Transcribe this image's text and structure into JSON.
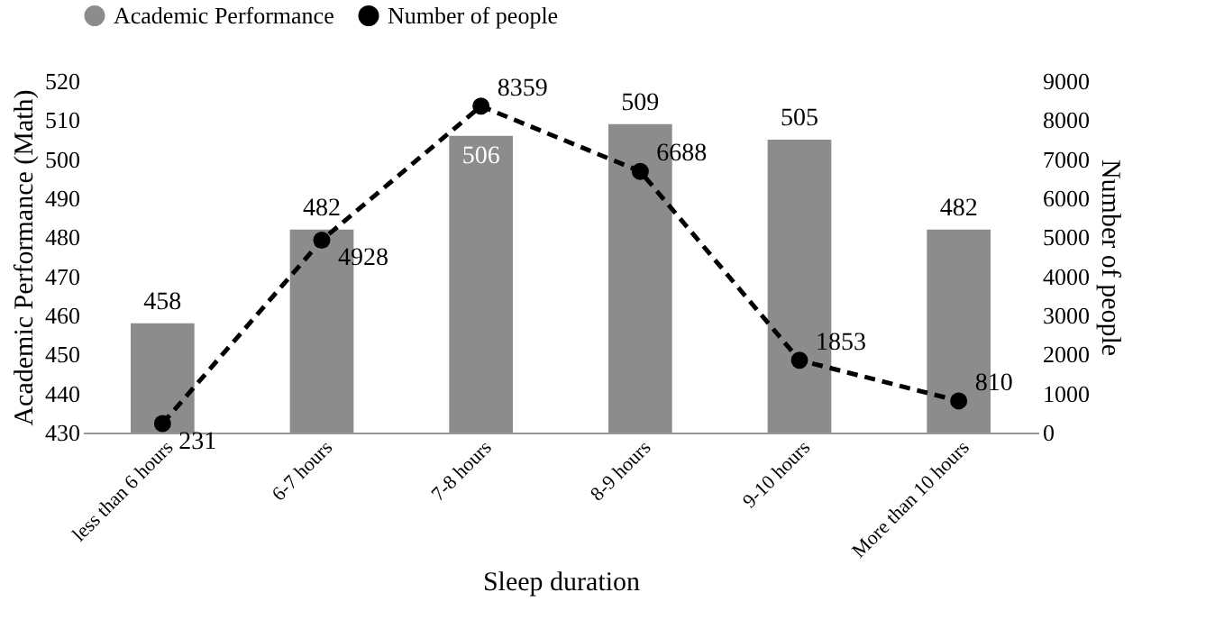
{
  "chart_data": {
    "type": "bar",
    "xlabel": "Sleep duration",
    "ylabel": "Academic Performance (Math)",
    "y2label": "Number of people",
    "categories": [
      "less than 6 hours",
      "6-7 hours",
      "7-8 hours",
      "8-9 hours",
      "9-10 hours",
      "More than 10 hours"
    ],
    "series": [
      {
        "name": "Academic Performance",
        "color": "#8c8c8c",
        "values": [
          458,
          482,
          506,
          509,
          505,
          482
        ]
      },
      {
        "name": "Number of people",
        "type": "line",
        "axis": "y2",
        "color": "#000000",
        "values": [
          231,
          4928,
          8359,
          6688,
          1853,
          810
        ]
      }
    ],
    "ylim": [
      430,
      520
    ],
    "yticks": [
      430,
      440,
      450,
      460,
      470,
      480,
      490,
      500,
      510,
      520
    ],
    "y2lim": [
      0,
      9000
    ],
    "y2ticks": [
      0,
      1000,
      2000,
      3000,
      4000,
      5000,
      6000,
      7000,
      8000,
      9000
    ],
    "data_labels": true,
    "legend": "top",
    "marker": "circle",
    "line_style": "dashed"
  }
}
